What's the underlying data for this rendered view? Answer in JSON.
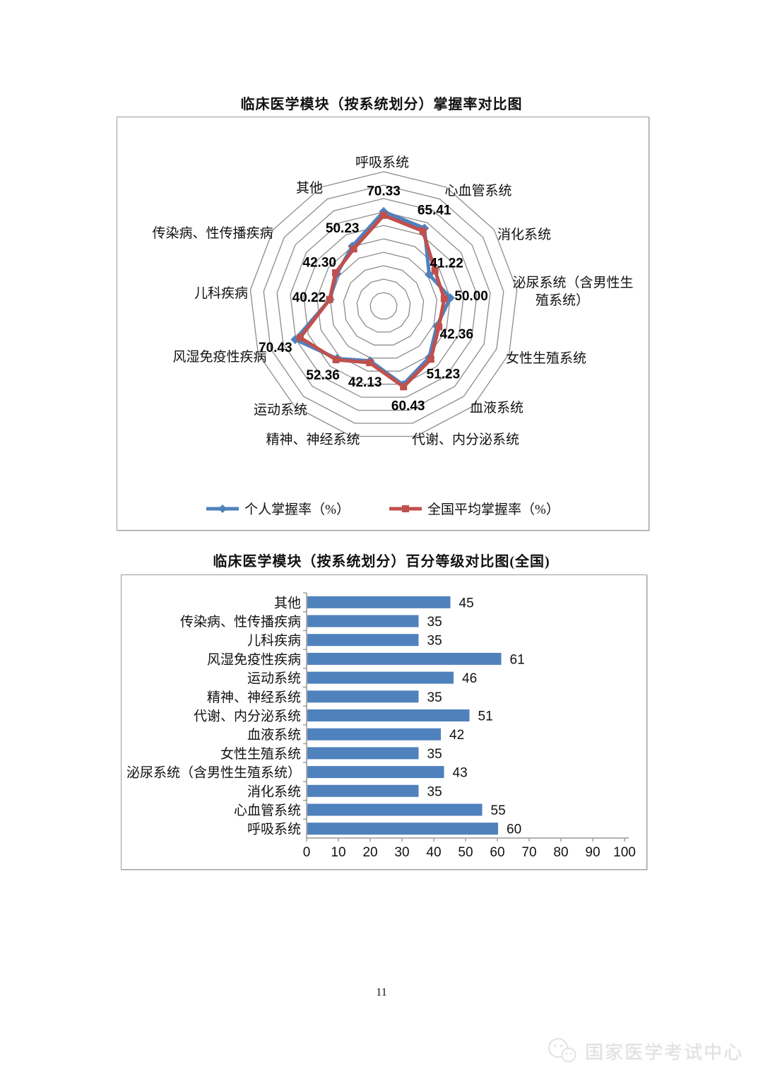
{
  "page": {
    "number": "11"
  },
  "footer": {
    "brand": "国家医学考试中心",
    "logo": "wechat-icon"
  },
  "chart_data": [
    {
      "type": "radar",
      "title": "临床医学模块（按系统划分）掌握率对比图",
      "categories": [
        "呼吸系统",
        "心血管系统",
        "消化系统",
        "泌尿系统（含男性生殖系统）",
        "女性生殖系统",
        "血液系统",
        "代谢、内分泌系统",
        "精神、神经系统",
        "运动系统",
        "风湿免疫性疾病",
        "儿科疾病",
        "传染病、性传播疾病",
        "其他"
      ],
      "series": [
        {
          "name": "个人掌握率（%）",
          "color": "#4F81BD",
          "marker": "diamond",
          "estimated": false,
          "values": [
            70.33,
            65.41,
            41.22,
            50.0,
            42.36,
            51.23,
            60.43,
            42.13,
            52.36,
            70.43,
            40.22,
            42.3,
            50.23
          ]
        },
        {
          "name": "全国平均掌握率（%）",
          "color": "#C0504D",
          "marker": "square",
          "estimated": true,
          "values": [
            67.5,
            63.0,
            46.5,
            45.5,
            44.0,
            53.0,
            62.0,
            43.5,
            53.5,
            66.5,
            40.5,
            43.5,
            48.0
          ]
        }
      ],
      "data_labels": [
        "70.33",
        "65.41",
        "41.22",
        "50.00",
        "42.36",
        "51.23",
        "60.43",
        "42.13",
        "52.36",
        "70.43",
        "40.22",
        "42.30",
        "50.23"
      ],
      "axis": {
        "max": 100,
        "ring_step": 10,
        "rings": 10
      },
      "grid": true,
      "legend_position": "bottom",
      "gridline_color": "#8c8c8c"
    },
    {
      "type": "bar",
      "title": "临床医学模块（按系统划分）百分等级对比图(全国)",
      "orientation": "horizontal",
      "categories": [
        "其他",
        "传染病、性传播疾病",
        "儿科疾病",
        "风湿免疫性疾病",
        "运动系统",
        "精神、神经系统",
        "代谢、内分泌系统",
        "血液系统",
        "女性生殖系统",
        "泌尿系统（含男性生殖系统）",
        "消化系统",
        "心血管系统",
        "呼吸系统"
      ],
      "values": [
        45,
        35,
        35,
        61,
        46,
        35,
        51,
        42,
        35,
        43,
        35,
        55,
        60
      ],
      "xlim": [
        0,
        100
      ],
      "x_ticks": [
        "0",
        "10",
        "20",
        "30",
        "40",
        "50",
        "60",
        "70",
        "80",
        "90",
        "100"
      ],
      "bar_color": "#4F81BD",
      "axis_color": "#999999",
      "grid": false,
      "legend_position": "none"
    }
  ]
}
